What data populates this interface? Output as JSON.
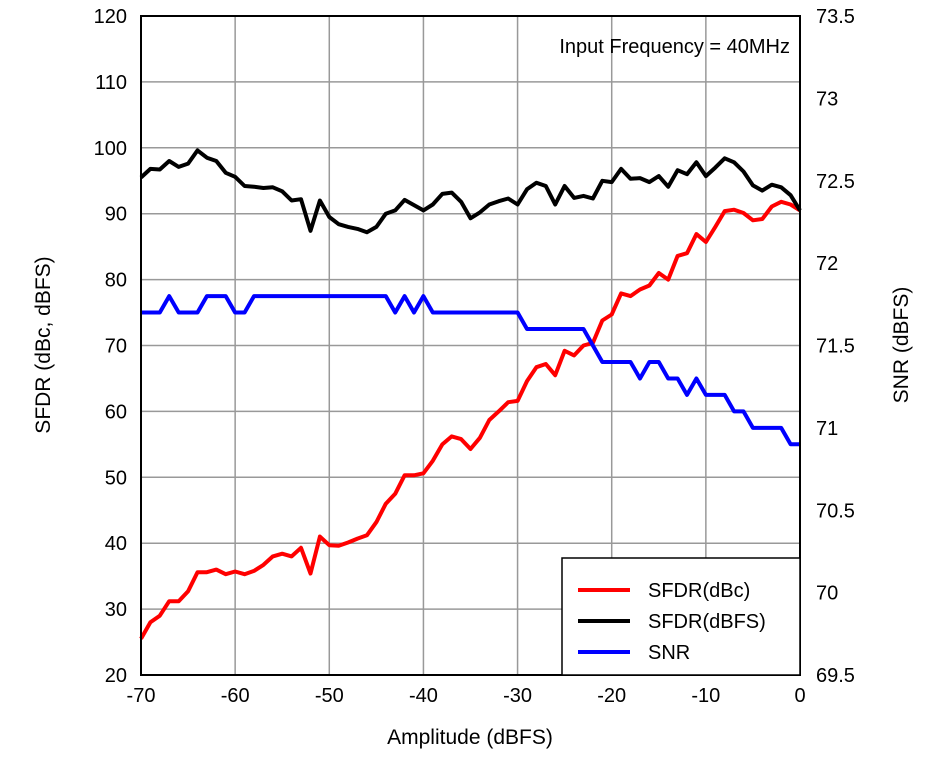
{
  "chart_data": {
    "type": "line",
    "annotation": "Input Frequency = 40MHz",
    "xlabel": "Amplitude (dBFS)",
    "ylabel": "SFDR (dBc, dBFS)",
    "y2label": "SNR (dBFS)",
    "xlim": [
      -70,
      0
    ],
    "ylim": [
      20,
      120
    ],
    "y2lim": [
      69.5,
      73.5
    ],
    "xticks": [
      "-70",
      "-60",
      "-50",
      "-40",
      "-30",
      "-20",
      "-10",
      "0"
    ],
    "yticks": [
      "20",
      "30",
      "40",
      "50",
      "60",
      "70",
      "80",
      "90",
      "100",
      "110",
      "120"
    ],
    "y2ticks": [
      "69.5",
      "70",
      "70.5",
      "71",
      "71.5",
      "72",
      "72.5",
      "73",
      "73.5"
    ],
    "grid": true,
    "legend_position": "bottom-right",
    "x": [
      -70,
      -69,
      -68,
      -67,
      -66,
      -65,
      -64,
      -63,
      -62,
      -61,
      -60,
      -59,
      -58,
      -57,
      -56,
      -55,
      -54,
      -53,
      -52,
      -51,
      -50,
      -49,
      -48,
      -47,
      -46,
      -45,
      -44,
      -43,
      -42,
      -41,
      -40,
      -39,
      -38,
      -37,
      -36,
      -35,
      -34,
      -33,
      -32,
      -31,
      -30,
      -29,
      -28,
      -27,
      -26,
      -25,
      -24,
      -23,
      -22,
      -21,
      -20,
      -19,
      -18,
      -17,
      -16,
      -15,
      -14,
      -13,
      -12,
      -11,
      -10,
      -9,
      -8,
      -7,
      -6,
      -5,
      -4,
      -3,
      -2,
      -1,
      0
    ],
    "series": [
      {
        "name": "SFDR(dBc)",
        "axis": "left",
        "color": "#ff0000",
        "values": [
          25.5,
          28,
          29,
          31.2,
          31.2,
          32.7,
          35.6,
          35.6,
          36,
          35.3,
          35.7,
          35.3,
          35.8,
          36.7,
          38,
          38.4,
          38,
          39.3,
          35.4,
          41,
          39.7,
          39.6,
          40.1,
          40.7,
          41.2,
          43.2,
          46,
          47.5,
          50.3,
          50.3,
          50.6,
          52.5,
          55,
          56.2,
          55.8,
          54.3,
          56,
          58.7,
          60,
          61.4,
          61.6,
          64.6,
          66.7,
          67.2,
          65.5,
          69.2,
          68.5,
          70,
          70.4,
          73.8,
          74.7,
          77.9,
          77.5,
          78.5,
          79.1,
          81,
          80,
          83.6,
          84,
          86.9,
          85.7,
          88,
          90.4,
          90.6,
          90.1,
          89,
          89.2,
          91.1,
          91.8,
          91.4,
          90.5
        ]
      },
      {
        "name": "SFDR(dBFS)",
        "axis": "left",
        "color": "#000000",
        "values": [
          95.5,
          96.8,
          96.7,
          98,
          97.1,
          97.6,
          99.6,
          98.5,
          98,
          96.2,
          95.6,
          94.2,
          94.1,
          93.9,
          94,
          93.4,
          92,
          92.2,
          87.4,
          92,
          89.5,
          88.4,
          88,
          87.7,
          87.2,
          88,
          90,
          90.5,
          92.1,
          91.3,
          90.5,
          91.4,
          93,
          93.2,
          91.8,
          89.3,
          90.2,
          91.4,
          91.9,
          92.3,
          91.4,
          93.7,
          94.7,
          94.2,
          91.4,
          94.2,
          92.4,
          92.7,
          92.3,
          95,
          94.8,
          96.8,
          95.3,
          95.4,
          94.8,
          95.7,
          94.1,
          96.6,
          96,
          97.8,
          95.7,
          97,
          98.4,
          97.8,
          96.4,
          94.3,
          93.5,
          94.4,
          94,
          92.8,
          90.5
        ]
      },
      {
        "name": "SNR",
        "axis": "right",
        "color": "#0000ff",
        "values": [
          71.7,
          71.7,
          71.7,
          71.8,
          71.7,
          71.7,
          71.7,
          71.8,
          71.8,
          71.8,
          71.7,
          71.7,
          71.8,
          71.8,
          71.8,
          71.8,
          71.8,
          71.8,
          71.8,
          71.8,
          71.8,
          71.8,
          71.8,
          71.8,
          71.8,
          71.8,
          71.8,
          71.7,
          71.8,
          71.7,
          71.8,
          71.7,
          71.7,
          71.7,
          71.7,
          71.7,
          71.7,
          71.7,
          71.7,
          71.7,
          71.7,
          71.6,
          71.6,
          71.6,
          71.6,
          71.6,
          71.6,
          71.6,
          71.5,
          71.4,
          71.4,
          71.4,
          71.4,
          71.3,
          71.4,
          71.4,
          71.3,
          71.3,
          71.2,
          71.3,
          71.2,
          71.2,
          71.2,
          71.1,
          71.1,
          71,
          71,
          71,
          71,
          70.9,
          70.9
        ]
      }
    ]
  }
}
